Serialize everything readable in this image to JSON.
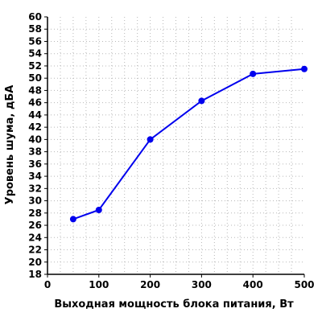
{
  "chart_data": {
    "type": "line",
    "title": "",
    "xlabel": "Выходная мощность блока питания, Вт",
    "ylabel": "Уровень шума, дБА",
    "xlim": [
      0,
      500
    ],
    "ylim": [
      18,
      60
    ],
    "x_ticks": [
      0,
      100,
      200,
      300,
      400,
      500
    ],
    "y_ticks": [
      18,
      20,
      22,
      24,
      26,
      28,
      30,
      32,
      34,
      36,
      38,
      40,
      42,
      44,
      46,
      48,
      50,
      52,
      54,
      56,
      58,
      60
    ],
    "grid": true,
    "grid_style": "dotted",
    "legend": "none",
    "line_color": "#0000ee",
    "marker_color": "#0000ee",
    "series": [
      {
        "x": [
          50,
          100,
          200,
          300,
          400,
          500
        ],
        "y": [
          27.0,
          28.5,
          40.0,
          46.3,
          50.7,
          51.5
        ]
      }
    ]
  }
}
